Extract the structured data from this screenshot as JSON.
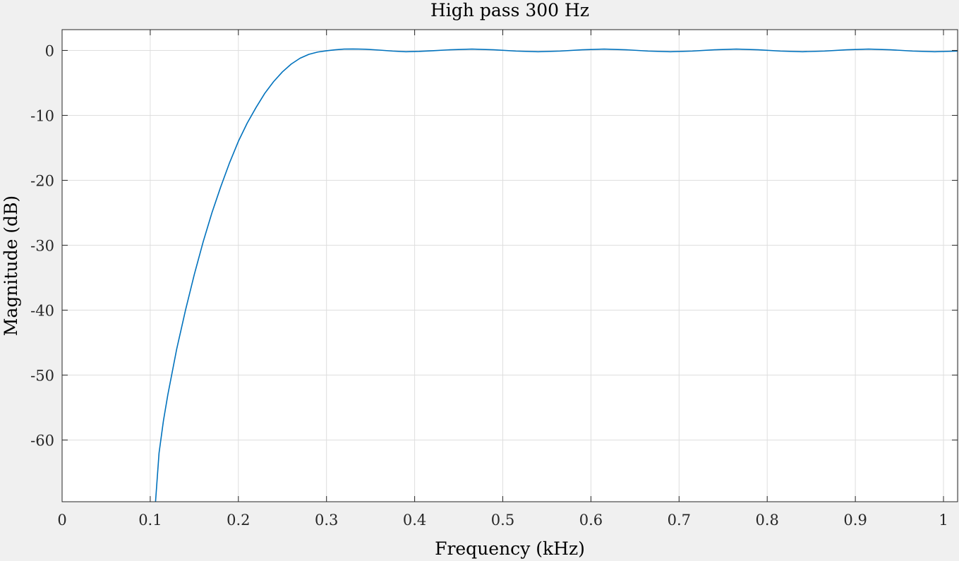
{
  "chart_data": {
    "type": "line",
    "title": "High pass 300 Hz",
    "xlabel": "Frequency (kHz)",
    "ylabel": "Magnitude (dB)",
    "xlim": [
      0,
      1.016
    ],
    "ylim": [
      -69.5,
      3.2
    ],
    "grid": true,
    "x_ticks": [
      0,
      0.1,
      0.2,
      0.3,
      0.4,
      0.5,
      0.6,
      0.7,
      0.8,
      0.9,
      1
    ],
    "x_tick_labels": [
      "0",
      "0.1",
      "0.2",
      "0.3",
      "0.4",
      "0.5",
      "0.6",
      "0.7",
      "0.8",
      "0.9",
      "1"
    ],
    "y_ticks": [
      0,
      -10,
      -20,
      -30,
      -40,
      -50,
      -60
    ],
    "y_tick_labels": [
      "0",
      "-10",
      "-20",
      "-30",
      "-40",
      "-50",
      "-60"
    ],
    "colors": {
      "line": "#0072bd",
      "grid": "#dedede",
      "axes": "#262626",
      "plot_bg": "#ffffff",
      "figure_bg": "#f0f0f0"
    },
    "series": [
      {
        "x": [
          0.106,
          0.11,
          0.115,
          0.12,
          0.13,
          0.14,
          0.15,
          0.16,
          0.17,
          0.18,
          0.19,
          0.2,
          0.21,
          0.22,
          0.23,
          0.24,
          0.25,
          0.26,
          0.27,
          0.28,
          0.29,
          0.3,
          0.31,
          0.32,
          0.33,
          0.345,
          0.36,
          0.375,
          0.39,
          0.405,
          0.42,
          0.44,
          0.465,
          0.49,
          0.515,
          0.54,
          0.565,
          0.59,
          0.615,
          0.64,
          0.665,
          0.69,
          0.715,
          0.74,
          0.765,
          0.79,
          0.815,
          0.84,
          0.865,
          0.89,
          0.915,
          0.94,
          0.965,
          0.99,
          1.016
        ],
        "values": [
          -69.5,
          -62,
          -57,
          -53,
          -46,
          -40,
          -34.5,
          -29.5,
          -25,
          -21,
          -17.3,
          -14,
          -11.2,
          -8.8,
          -6.6,
          -4.8,
          -3.3,
          -2.1,
          -1.2,
          -0.6,
          -0.25,
          -0.05,
          0.1,
          0.2,
          0.22,
          0.18,
          0.05,
          -0.1,
          -0.2,
          -0.15,
          -0.05,
          0.1,
          0.2,
          0.1,
          -0.1,
          -0.2,
          -0.1,
          0.1,
          0.2,
          0.1,
          -0.1,
          -0.2,
          -0.1,
          0.1,
          0.2,
          0.1,
          -0.1,
          -0.2,
          -0.1,
          0.1,
          0.2,
          0.1,
          -0.1,
          -0.2,
          -0.1
        ]
      }
    ]
  }
}
